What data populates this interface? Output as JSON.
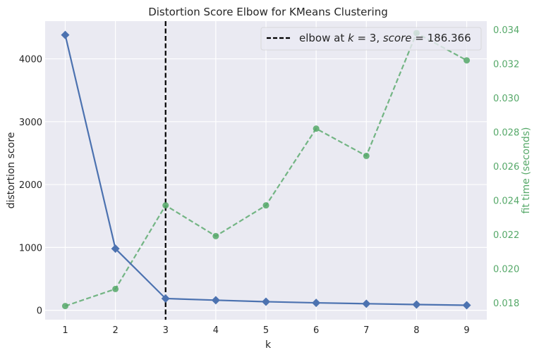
{
  "chart_data": {
    "type": "line",
    "title": "Distortion Score Elbow for KMeans Clustering",
    "xlabel": "k",
    "ylabel": "distortion score",
    "y2label": "fit time (seconds)",
    "x": [
      1,
      2,
      3,
      4,
      5,
      6,
      7,
      8,
      9
    ],
    "xlim": [
      0.6,
      9.4
    ],
    "ylim": [
      -150,
      4600
    ],
    "y2lim": [
      0.017,
      0.0345
    ],
    "yticks": [
      0,
      1000,
      2000,
      3000,
      4000
    ],
    "y2ticks": [
      "0.018",
      "0.020",
      "0.022",
      "0.024",
      "0.026",
      "0.028",
      "0.030",
      "0.032",
      "0.034"
    ],
    "series": [
      {
        "name": "distortion score",
        "axis": "left",
        "values": [
          4380,
          980,
          186.366,
          160,
          136,
          118,
          104,
          91,
          80
        ],
        "color": "#4c72b0",
        "marker": "diamond",
        "line": "solid"
      },
      {
        "name": "fit time (seconds)",
        "axis": "right",
        "values": [
          0.0178,
          0.0188,
          0.0237,
          0.0219,
          0.0237,
          0.0282,
          0.0266,
          0.0338,
          0.0322
        ],
        "color": "#55a868",
        "marker": "circle",
        "line": "dashed"
      }
    ],
    "elbow": {
      "x": 3,
      "legend": {
        "prefix": "elbow at ",
        "k": "k",
        "eq1": " = 3, ",
        "score": "score",
        "eq2": " = 186.366"
      }
    },
    "grid": true,
    "legend_position": "top-right",
    "colors": {
      "background": "#eaeaf2",
      "grid": "#ffffff",
      "elbow": "#000000"
    }
  }
}
